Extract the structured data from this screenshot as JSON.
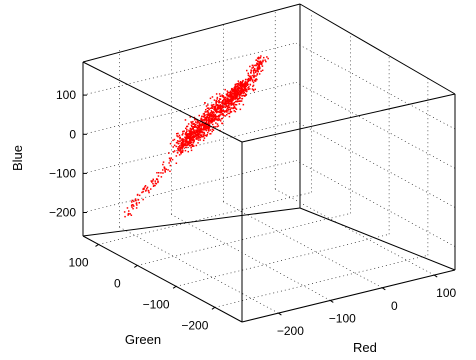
{
  "chart_data": {
    "type": "scatter3d",
    "title": "",
    "xlabel": "Red",
    "ylabel": "Green",
    "zlabel": "Blue",
    "xlim": [
      -270,
      140
    ],
    "ylim": [
      -270,
      140
    ],
    "zlim": [
      -260,
      200
    ],
    "x_ticks": [
      -200,
      -100,
      0,
      100
    ],
    "y_ticks": [
      -200,
      -100,
      0,
      100
    ],
    "z_ticks": [
      -200,
      -100,
      0,
      100
    ],
    "x_tick_labels": [
      "−200",
      "−100",
      "0",
      "100"
    ],
    "y_tick_labels": [
      "−200",
      "−100",
      "0",
      "100"
    ],
    "z_tick_labels": [
      "−200",
      "−100",
      "0",
      "100"
    ],
    "grid": true,
    "box": true,
    "marker_color": "#ff0000",
    "point_count": 1400,
    "points_sample": [
      [
        -20,
        0,
        200
      ],
      [
        -30,
        10,
        170
      ],
      [
        -35,
        15,
        150
      ],
      [
        -40,
        18,
        130
      ],
      [
        -50,
        25,
        110
      ],
      [
        -60,
        32,
        90
      ],
      [
        -70,
        40,
        70
      ],
      [
        -80,
        45,
        50
      ],
      [
        -90,
        52,
        30
      ],
      [
        -100,
        58,
        10
      ],
      [
        -110,
        65,
        -10
      ],
      [
        -120,
        70,
        -30
      ],
      [
        -135,
        78,
        -60
      ],
      [
        -150,
        85,
        -90
      ],
      [
        -165,
        92,
        -120
      ],
      [
        -180,
        98,
        -150
      ],
      [
        -195,
        104,
        -180
      ],
      [
        -210,
        110,
        -215
      ]
    ]
  }
}
